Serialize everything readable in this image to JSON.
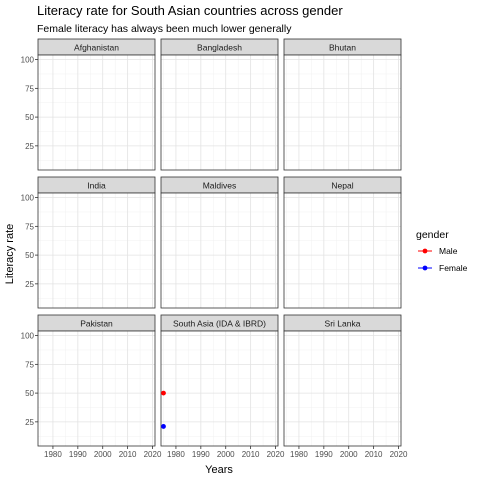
{
  "chart_data": {
    "type": "scatter",
    "title": "Literacy rate for South Asian countries across gender",
    "subtitle": "Female literacy has always been much lower generally",
    "xlabel": "Years",
    "ylabel": "Literacy rate",
    "xlim": [
      1974,
      2021
    ],
    "ylim": [
      4,
      104
    ],
    "x_ticks": [
      1980,
      1990,
      2000,
      2010,
      2020
    ],
    "x_tick_labels": [
      "1980",
      "1990",
      "2000",
      "2010",
      "2020"
    ],
    "y_ticks": [
      25,
      50,
      75,
      100
    ],
    "y_tick_labels": [
      "25",
      "50",
      "75",
      "100"
    ],
    "grid": true,
    "legend_position": "right",
    "legend_title": "gender",
    "facets": [
      "Afghanistan",
      "Bangladesh",
      "Bhutan",
      "India",
      "Maldives",
      "Nepal",
      "Pakistan",
      "South Asia (IDA & IBRD)",
      "Sri Lanka"
    ],
    "series": [
      {
        "name": "Male",
        "color": "#ff0000",
        "points": [
          {
            "facet": "South Asia (IDA & IBRD)",
            "x": 1975,
            "y": 50
          }
        ]
      },
      {
        "name": "Female",
        "color": "#0000ff",
        "points": [
          {
            "facet": "South Asia (IDA & IBRD)",
            "x": 1975,
            "y": 21
          }
        ]
      }
    ]
  }
}
